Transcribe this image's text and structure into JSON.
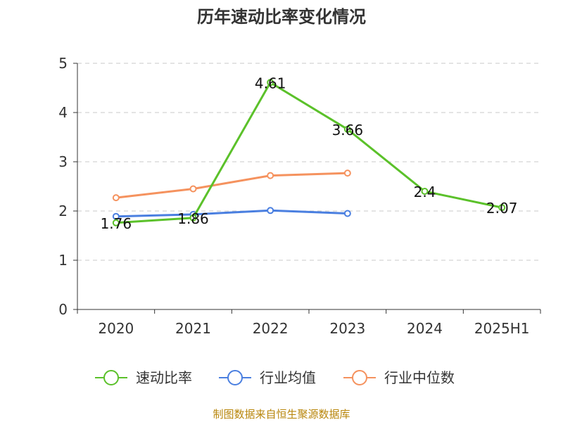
{
  "chart_data": {
    "type": "line",
    "title": "历年速动比率变化情况",
    "categories": [
      "2020",
      "2021",
      "2022",
      "2023",
      "2024",
      "2025H1"
    ],
    "ylim": [
      0,
      5
    ],
    "yticks": [
      "0",
      "1",
      "2",
      "3",
      "4",
      "5"
    ],
    "grid": true,
    "legend_position": "bottom",
    "series": [
      {
        "name": "速动比率",
        "color": "#5bc12a",
        "values": [
          1.76,
          1.86,
          4.61,
          3.66,
          2.4,
          2.07
        ],
        "labels": [
          "1.76",
          "1.86",
          "4.61",
          "3.66",
          "2.4",
          "2.07"
        ]
      },
      {
        "name": "行业均值",
        "color": "#4a7fe0",
        "values": [
          1.89,
          1.93,
          2.01,
          1.95,
          null,
          null
        ]
      },
      {
        "name": "行业中位数",
        "color": "#f5925e",
        "values": [
          2.27,
          2.45,
          2.72,
          2.77,
          null,
          null
        ]
      }
    ]
  },
  "footer": {
    "source": "制图数据来自恒生聚源数据库"
  }
}
